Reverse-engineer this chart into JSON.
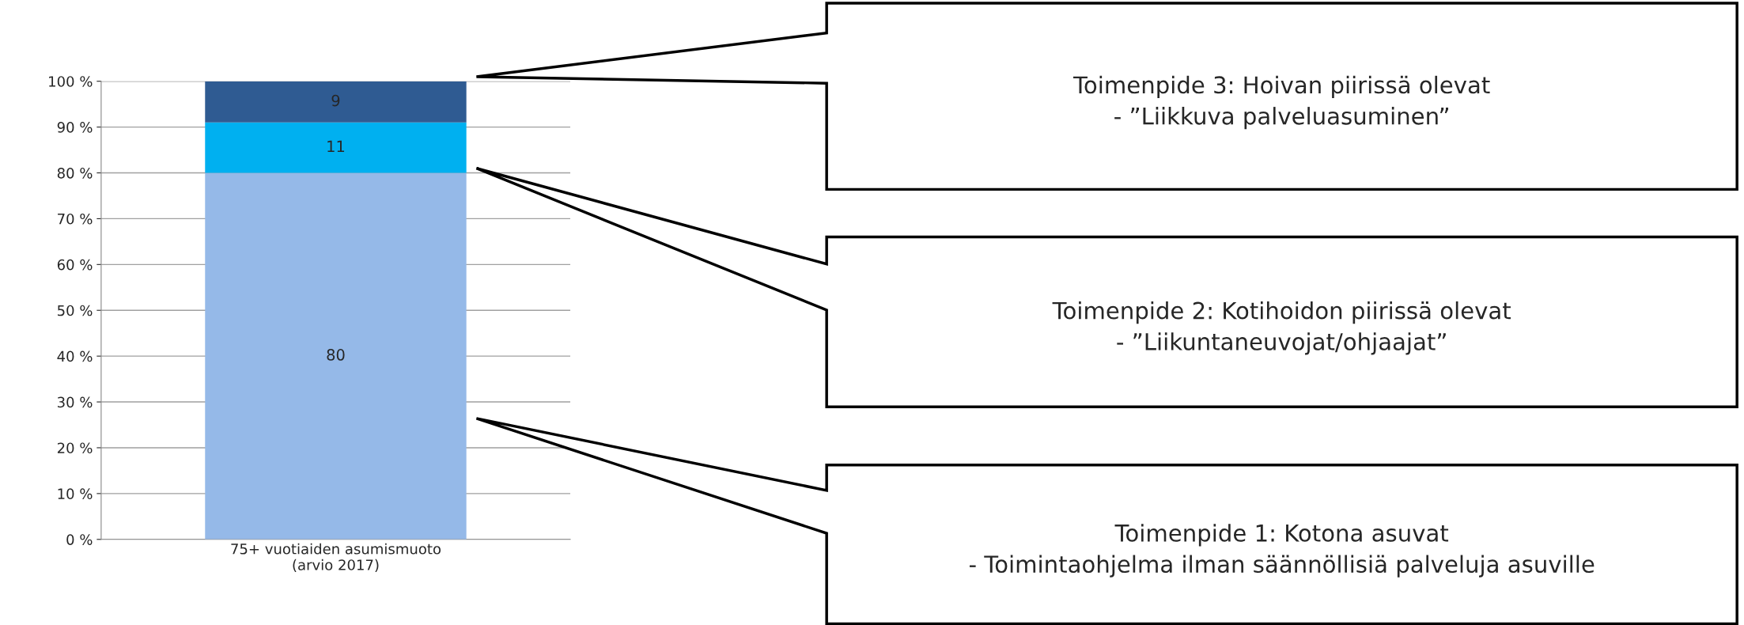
{
  "chart_data": {
    "type": "bar",
    "stacked": true,
    "categories": [
      "75+ vuotiaiden asumismuoto (arvio 2017)"
    ],
    "series": [
      {
        "color": "#95b9e8",
        "values": [
          80
        ]
      },
      {
        "color": "#00b0f0",
        "values": [
          11
        ]
      },
      {
        "color": "#2f5b92",
        "values": [
          9
        ]
      }
    ],
    "ylim": [
      0,
      100
    ],
    "yticks": [
      {
        "value": 0,
        "label": "0 %"
      },
      {
        "value": 10,
        "label": "10 %"
      },
      {
        "value": 20,
        "label": "20 %"
      },
      {
        "value": 30,
        "label": "30 %"
      },
      {
        "value": 40,
        "label": "40 %"
      },
      {
        "value": 50,
        "label": "50 %"
      },
      {
        "value": 60,
        "label": "60 %"
      },
      {
        "value": 70,
        "label": "70 %"
      },
      {
        "value": 80,
        "label": "80 %"
      },
      {
        "value": 90,
        "label": "90 %"
      },
      {
        "value": 100,
        "label": "100 %"
      }
    ],
    "grid": "y",
    "data_labels": true,
    "annotations": [
      "Toimenpide 3: Hoivan piirissä olevat\n- ”Liikkuva palveluasuminen”",
      "Toimenpide 2: Kotihoidon piirissä olevat\n- ”Liikuntaneuvojat/ohjaajat”",
      "Toimenpide 1: Kotona asuvat\n- Toimintaohjelma ilman säännöllisiä palveluja asuville"
    ]
  }
}
